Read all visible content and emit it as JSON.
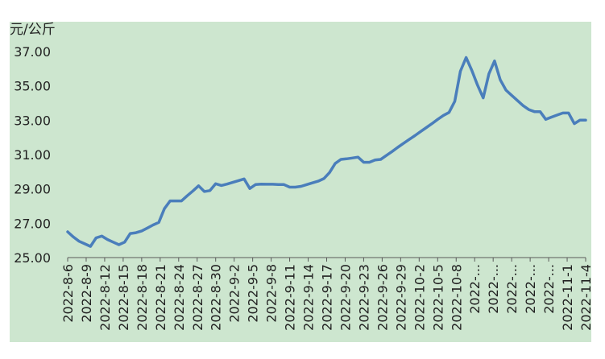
{
  "colors": {
    "background": "#cde6cf",
    "line": "#4a7ebb",
    "axis": "#5a5a5a"
  },
  "chart_data": {
    "type": "line",
    "title": "",
    "ylabel": "元/公斤",
    "xlabel": "",
    "ylim": [
      25.0,
      37.0
    ],
    "grid": false,
    "legend": "none",
    "y_ticks": [
      "25.00",
      "27.00",
      "29.00",
      "31.00",
      "33.00",
      "35.00",
      "37.00"
    ],
    "x_tick_labels": [
      "2022-8-6",
      "2022-8-9",
      "2022-8-12",
      "2022-8-15",
      "2022-8-18",
      "2022-8-21",
      "2022-8-24",
      "2022-8-27",
      "2022-8-30",
      "2022-9-2",
      "2022-9-5",
      "2022-9-8",
      "2022-9-11",
      "2022-9-14",
      "2022-9-17",
      "2022-9-20",
      "2022-9-23",
      "2022-9-26",
      "2022-9-29",
      "2022-10-2",
      "2022-10-5",
      "2022-10-8",
      "2022-...",
      "2022-...",
      "2022-...",
      "2022-...",
      "2022-...",
      "2022-11-1",
      "2022-11-4"
    ],
    "series": [
      {
        "values": [
          26.5,
          26.2,
          25.95,
          25.8,
          25.65,
          26.15,
          26.25,
          26.05,
          25.9,
          25.75,
          25.9,
          26.4,
          26.45,
          26.55,
          26.72,
          26.9,
          27.05,
          27.85,
          28.3,
          28.3,
          28.3,
          28.6,
          28.88,
          29.18,
          28.85,
          28.9,
          29.3,
          29.2,
          29.28,
          29.38,
          29.48,
          29.58,
          29.02,
          29.25,
          29.28,
          29.27,
          29.27,
          29.25,
          29.25,
          29.1,
          29.1,
          29.15,
          29.25,
          29.35,
          29.45,
          29.6,
          29.95,
          30.48,
          30.72,
          30.75,
          30.8,
          30.85,
          30.55,
          30.55,
          30.68,
          30.72,
          30.95,
          31.18,
          31.42,
          31.65,
          31.88,
          32.1,
          32.34,
          32.57,
          32.8,
          33.05,
          33.28,
          33.45,
          34.1,
          35.85,
          36.65,
          35.9,
          35.05,
          34.3,
          35.7,
          36.45,
          35.35,
          34.75,
          34.45,
          34.15,
          33.85,
          33.62,
          33.5,
          33.5,
          33.05,
          33.18,
          33.3,
          33.42,
          33.42,
          32.8,
          33.0,
          33.0
        ]
      }
    ]
  }
}
